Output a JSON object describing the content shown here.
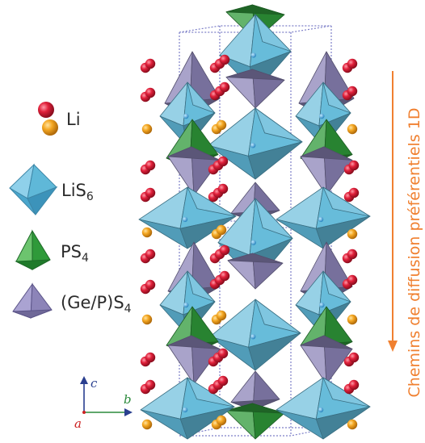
{
  "legend": {
    "li": {
      "label": "Li"
    },
    "lis6": {
      "label": "LiS",
      "sub": "6"
    },
    "ps4": {
      "label": "PS",
      "sub": "4"
    },
    "gep": {
      "label": "(Ge/P)S",
      "sub": "4"
    }
  },
  "axes": {
    "c": "c",
    "b": "b",
    "a": "a"
  },
  "side_label": "Chemins de diffusion préférentiels 1D",
  "colors": {
    "li_red": "#e0203a",
    "li_orange": "#f4a722",
    "lis6_blue": "#5fb8d8",
    "ps4_green": "#2f9a3a",
    "gep_purple": "#8c84b8",
    "arrow_orange": "#f08030",
    "axis_c": "#2a3f8f",
    "axis_b": "#2a8a3a",
    "axis_a": "#cc2222"
  }
}
